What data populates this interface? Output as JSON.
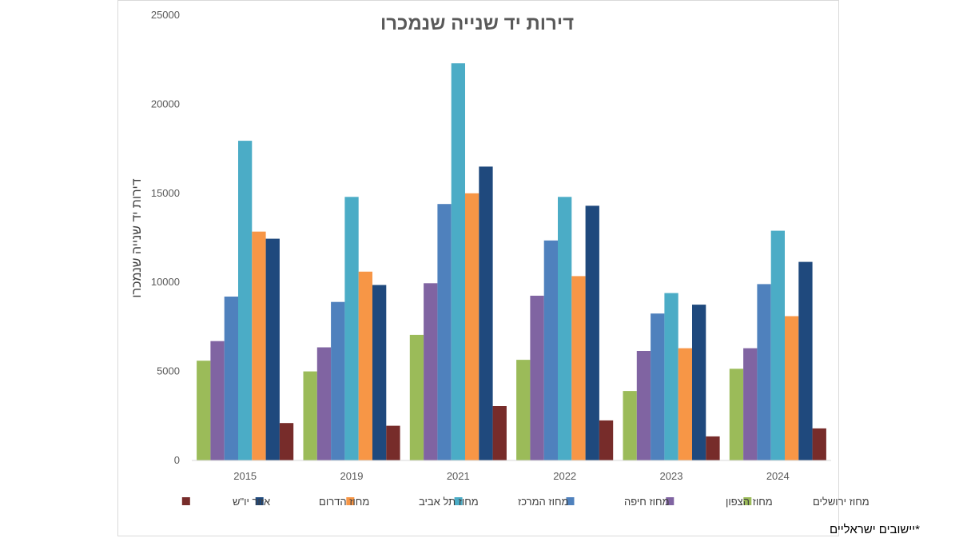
{
  "chart_data": {
    "type": "bar",
    "title": "דירות יד שנייה שנמכרו",
    "ylabel": "דירות יד שנייה שנמכרו",
    "xlabel": "",
    "ylim": [
      0,
      25000
    ],
    "yticks": [
      0,
      5000,
      10000,
      15000,
      20000,
      25000
    ],
    "categories": [
      "2015",
      "2019",
      "2021",
      "2022",
      "2023",
      "2024"
    ],
    "grid": false,
    "legend_position": "bottom",
    "series": [
      {
        "name": "מחוז ירושלים",
        "color": "#9bbb59",
        "values": [
          5600,
          5000,
          7050,
          5650,
          3900,
          5150
        ]
      },
      {
        "name": "מחוז הצפון",
        "color": "#8064a2",
        "values": [
          6700,
          6350,
          9950,
          9250,
          6150,
          6300
        ]
      },
      {
        "name": "מחוז חיפה",
        "color": "#4f81bd",
        "values": [
          9200,
          8900,
          14400,
          12350,
          8250,
          9900
        ]
      },
      {
        "name": "מחוז המרכז",
        "color": "#4bacc6",
        "values": [
          17950,
          14800,
          22300,
          14800,
          9400,
          12900
        ]
      },
      {
        "name": "מחוז תל אביב",
        "color": "#f79646",
        "values": [
          12850,
          10600,
          15000,
          10350,
          6300,
          8100
        ]
      },
      {
        "name": "מחוז הדרום",
        "color": "#1f497d",
        "values": [
          12450,
          9850,
          16500,
          14300,
          8750,
          11150
        ]
      },
      {
        "name": "אזור יו\"ש",
        "color": "#772c2a",
        "values": [
          2100,
          1950,
          3050,
          2250,
          1350,
          1800
        ]
      }
    ],
    "footnote": "*יישובים ישראליים"
  }
}
